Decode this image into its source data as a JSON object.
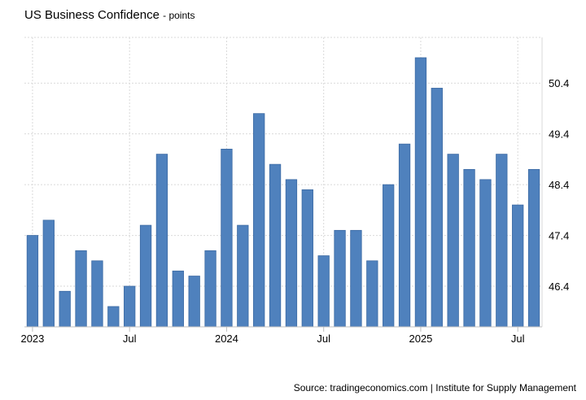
{
  "header": {
    "title": "US Business Confidence",
    "unit": "- points"
  },
  "footer": {
    "source": "Source: tradingeconomics.com | Institute for Supply Management"
  },
  "colors": {
    "bar": "#4f81bd",
    "bar_stroke": "#3c6aa3",
    "grid": "#d9d9d9",
    "axis": "#bfbfbf",
    "text": "#000000"
  },
  "chart_data": {
    "type": "bar",
    "title": "US Business Confidence",
    "unit": "points",
    "categories": [
      "2023-01",
      "2023-02",
      "2023-03",
      "2023-04",
      "2023-05",
      "2023-06",
      "2023-07",
      "2023-08",
      "2023-09",
      "2023-10",
      "2023-11",
      "2023-12",
      "2024-01",
      "2024-02",
      "2024-03",
      "2024-04",
      "2024-05",
      "2024-06",
      "2024-07",
      "2024-08",
      "2024-09",
      "2024-10",
      "2024-11",
      "2024-12",
      "2025-01",
      "2025-02",
      "2025-03",
      "2025-04",
      "2025-05",
      "2025-06",
      "2025-07",
      "2025-08"
    ],
    "values": [
      47.4,
      47.7,
      46.3,
      47.1,
      46.9,
      46.0,
      46.4,
      47.6,
      49.0,
      46.7,
      46.6,
      47.1,
      49.1,
      47.6,
      49.8,
      48.8,
      48.5,
      48.3,
      47.0,
      47.5,
      47.5,
      46.9,
      48.4,
      49.2,
      50.9,
      50.3,
      49.0,
      48.7,
      48.5,
      49.0,
      48.0,
      48.7
    ],
    "ylim": [
      45.6,
      51.3
    ],
    "y_ticks": [
      46.4,
      47.4,
      48.4,
      49.4,
      50.4
    ],
    "y_tick_labels": [
      "46.4",
      "47.4",
      "48.4",
      "49.4",
      "50.4"
    ],
    "x_tick_labels": [
      {
        "category": "2023-01",
        "label": "2023"
      },
      {
        "category": "2023-07",
        "label": "Jul"
      },
      {
        "category": "2024-01",
        "label": "2024"
      },
      {
        "category": "2024-07",
        "label": "Jul"
      },
      {
        "category": "2025-01",
        "label": "2025"
      },
      {
        "category": "2025-07",
        "label": "Jul"
      }
    ],
    "yaxis_side": "right",
    "grid": true,
    "legend": "none"
  }
}
